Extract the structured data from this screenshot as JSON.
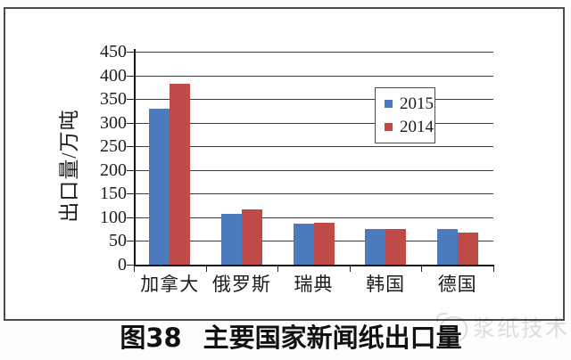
{
  "chart_data": {
    "type": "bar",
    "title": "主要国家新闻纸出口量",
    "title_prefix": "图38",
    "ylabel": "出口量/万吨",
    "ylim": [
      0,
      450
    ],
    "yticks": [
      450,
      400,
      350,
      300,
      250,
      200,
      150,
      100,
      50,
      0
    ],
    "grid": true,
    "legend_position": "inside-upper-right",
    "categories": [
      "加拿大",
      "俄罗斯",
      "瑞典",
      "韩国",
      "德国"
    ],
    "series": [
      {
        "name": "2015",
        "color": "#4B7BBD",
        "values": [
          330,
          108,
          86,
          75,
          76
        ]
      },
      {
        "name": "2014",
        "color": "#BE4B48",
        "values": [
          382,
          116,
          89,
          75,
          68
        ]
      }
    ]
  },
  "watermark": {
    "logo": "mascot-face-logo",
    "text": "浆纸技术"
  }
}
